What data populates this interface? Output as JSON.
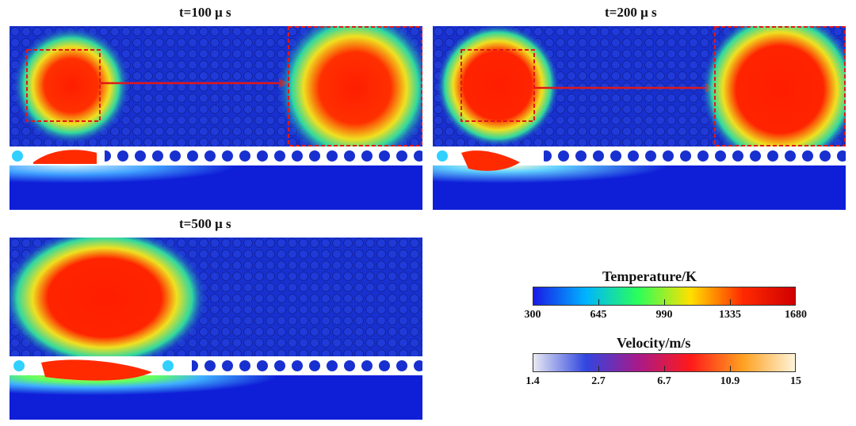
{
  "panels": [
    {
      "title": "t=100 μ s"
    },
    {
      "title": "t=200 μ s"
    },
    {
      "title": "t=500 μ s"
    }
  ],
  "temperature_bar": {
    "title": "Temperature/K",
    "ticks": [
      "300",
      "645",
      "990",
      "1335",
      "1680"
    ],
    "colors": [
      "#1a1ae6",
      "#00b4ff",
      "#2aff5a",
      "#ffe000",
      "#ff2a00",
      "#d00000"
    ]
  },
  "velocity_bar": {
    "title": "Velocity/m/s",
    "ticks": [
      "1.4",
      "2.7",
      "6.7",
      "10.9",
      "15"
    ],
    "colors": [
      "#e9e9f2",
      "#3046e0",
      "#a81a8a",
      "#ff1a1a",
      "#ffa020",
      "#fff4d8"
    ]
  },
  "colors": {
    "substrate": "#0f1fd8",
    "powder": "#1830d0",
    "hot": "#ff1e00",
    "arrow": "#e01818"
  }
}
